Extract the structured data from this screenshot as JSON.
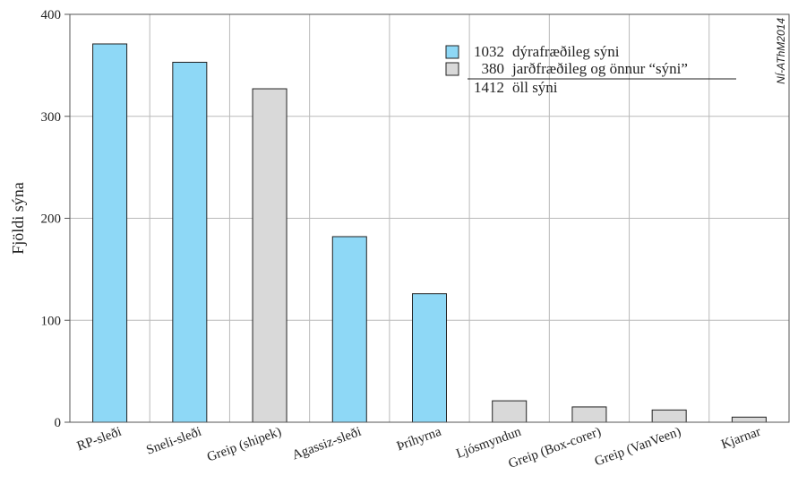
{
  "chart_data": {
    "type": "bar",
    "categories": [
      "RP-sleði",
      "Sneli-sleði",
      "Greip (shipek)",
      "Agassiz-sleði",
      "Þríhyrna",
      "Ljósmyndun",
      "Greip (Box-corer)",
      "Greip (VanVeen)",
      "Kjarnar"
    ],
    "values": [
      371,
      353,
      327,
      182,
      126,
      21,
      15,
      12,
      5
    ],
    "series_type": [
      "dyr",
      "dyr",
      "jard",
      "dyr",
      "dyr",
      "jard",
      "jard",
      "jard",
      "jard"
    ],
    "title": "",
    "xlabel": "",
    "ylabel": "Fjöldi sýna",
    "ylim": [
      0,
      400
    ],
    "yticks": [
      0,
      100,
      200,
      300,
      400
    ],
    "grid": true,
    "legend_position": "top-right",
    "legend": [
      {
        "key": "dyr",
        "number": "1032",
        "label": "dýrafræðileg sýni",
        "color": "#8ed8f6"
      },
      {
        "key": "jard",
        "number": "380",
        "label": "jarðfræðileg og önnur “sýni”",
        "color": "#d9d9d9"
      }
    ],
    "legend_total": {
      "number": "1412",
      "label": "öll sýni"
    },
    "watermark": "NÍ-AThM2014"
  }
}
